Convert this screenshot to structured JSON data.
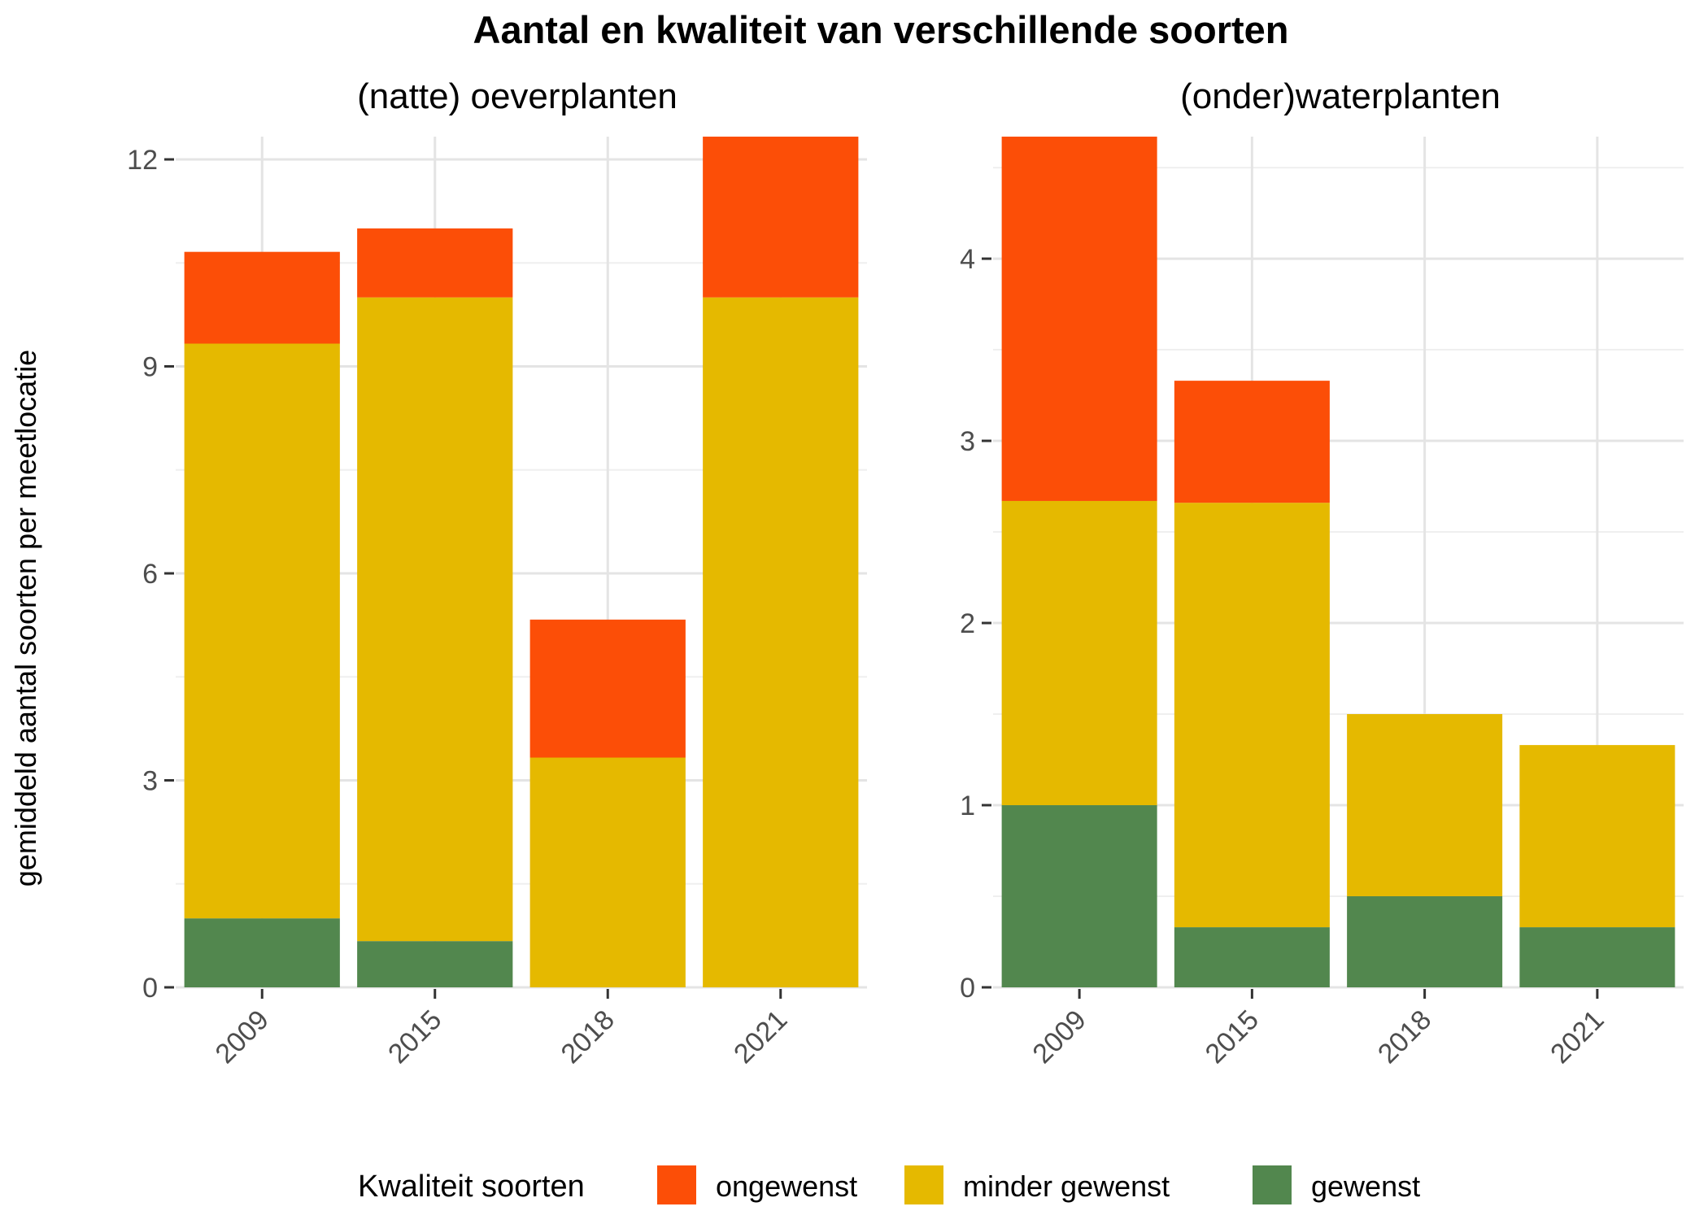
{
  "chart_title": "Aantal en kwaliteit van verschillende soorten",
  "ylabel": "gemiddeld aantal soorten per meetlocatie",
  "legend": {
    "title": "Kwaliteit soorten",
    "position": "bottom",
    "items": [
      {
        "label": "ongewenst",
        "color": "#FC4E07"
      },
      {
        "label": "minder gewenst",
        "color": "#E5B900"
      },
      {
        "label": "gewenst",
        "color": "#52874E"
      }
    ]
  },
  "chart_data": [
    {
      "type": "bar",
      "stacked": true,
      "title": "(natte) oeverplanten",
      "categories": [
        "2009",
        "2015",
        "2018",
        "2021"
      ],
      "series": [
        {
          "name": "gewenst",
          "color": "#52874E",
          "values": [
            1.0,
            0.67,
            0.0,
            0.0
          ]
        },
        {
          "name": "minder gewenst",
          "color": "#E5B900",
          "values": [
            8.33,
            9.33,
            3.33,
            10.0
          ]
        },
        {
          "name": "ongewenst",
          "color": "#FC4E07",
          "values": [
            1.33,
            1.0,
            2.0,
            2.33
          ]
        }
      ],
      "yticks": [
        0,
        3,
        6,
        9,
        12
      ],
      "ylim": [
        0,
        12.33
      ],
      "grid": true
    },
    {
      "type": "bar",
      "stacked": true,
      "title": "(onder)waterplanten",
      "categories": [
        "2009",
        "2015",
        "2018",
        "2021"
      ],
      "series": [
        {
          "name": "gewenst",
          "color": "#52874E",
          "values": [
            1.0,
            0.33,
            0.5,
            0.33
          ]
        },
        {
          "name": "minder gewenst",
          "color": "#E5B900",
          "values": [
            1.67,
            2.33,
            1.0,
            1.0
          ]
        },
        {
          "name": "ongewenst",
          "color": "#FC4E07",
          "values": [
            2.0,
            0.67,
            0.0,
            0.0
          ]
        }
      ],
      "yticks": [
        0,
        1,
        2,
        3,
        4
      ],
      "ylim": [
        0,
        4.67
      ],
      "grid": true
    }
  ]
}
